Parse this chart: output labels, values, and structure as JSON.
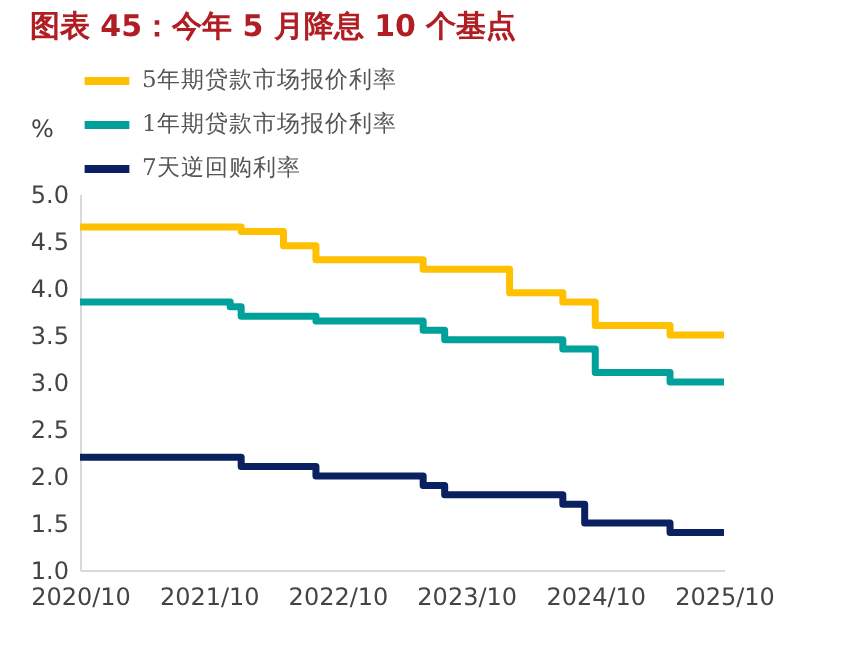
{
  "chart_data": {
    "type": "step",
    "title": "图表 45：今年 5 月降息 10 个基点",
    "ylabel": "%",
    "xlim": [
      "2020-10",
      "2025-10"
    ],
    "xticks": [
      {
        "value": "2020-10",
        "label": "2020/10"
      },
      {
        "value": "2021-10",
        "label": "2021/10"
      },
      {
        "value": "2022-10",
        "label": "2022/10"
      },
      {
        "value": "2023-10",
        "label": "2023/10"
      },
      {
        "value": "2024-10",
        "label": "2024/10"
      },
      {
        "value": "2025-10",
        "label": "2025/10"
      }
    ],
    "ylim": [
      1.0,
      5.0
    ],
    "yticks": [
      {
        "value": 1,
        "label": "1.0"
      },
      {
        "value": 1.5,
        "label": "1.5"
      },
      {
        "value": 2,
        "label": "2.0"
      },
      {
        "value": 2.5,
        "label": "2.5"
      },
      {
        "value": 3,
        "label": "3.0"
      },
      {
        "value": 3.5,
        "label": "3.5"
      },
      {
        "value": 4,
        "label": "4.0"
      },
      {
        "value": 4.5,
        "label": "4.5"
      },
      {
        "value": 5,
        "label": "5.0"
      }
    ],
    "grid": false,
    "legend": "top",
    "marker": "none",
    "series": [
      {
        "name": "5年期贷款市场报价利率",
        "color": "#ffc000",
        "x": [
          "2020-10",
          "2022-01",
          "2022-05",
          "2022-08",
          "2023-06",
          "2024-02",
          "2024-07",
          "2024-10",
          "2025-05",
          "2025-10"
        ],
        "values": [
          4.65,
          4.6,
          4.45,
          4.3,
          4.2,
          3.95,
          3.85,
          3.6,
          3.5,
          3.5
        ]
      },
      {
        "name": "1年期贷款市场报价利率",
        "color": "#00a19a",
        "x": [
          "2020-10",
          "2021-12",
          "2022-01",
          "2022-08",
          "2023-06",
          "2023-08",
          "2024-07",
          "2024-10",
          "2025-05",
          "2025-10"
        ],
        "values": [
          3.85,
          3.8,
          3.7,
          3.65,
          3.55,
          3.45,
          3.35,
          3.1,
          3.0,
          3.0
        ]
      },
      {
        "name": "7天逆回购利率",
        "color": "#0a2060",
        "x": [
          "2020-10",
          "2022-01",
          "2022-08",
          "2023-06",
          "2023-08",
          "2024-07",
          "2024-09",
          "2025-05",
          "2025-10"
        ],
        "values": [
          2.2,
          2.1,
          2.0,
          1.9,
          1.8,
          1.7,
          1.5,
          1.4,
          1.4
        ]
      }
    ]
  }
}
